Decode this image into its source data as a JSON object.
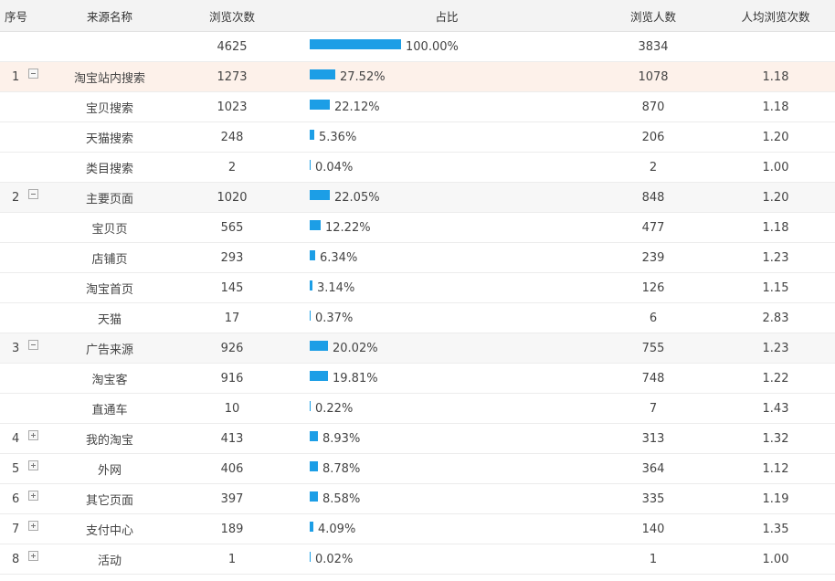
{
  "header": {
    "index": "序号",
    "source": "来源名称",
    "pageviews": "浏览次数",
    "share": "占比",
    "visitors": "浏览人数",
    "avg": "人均浏览次数"
  },
  "total": {
    "pageviews": "4625",
    "share": "100.00%",
    "share_value": 100,
    "visitors": "3834"
  },
  "rows": [
    {
      "index": "1",
      "toggle": "collapse",
      "source": "淘宝站内搜索",
      "pageviews": "1273",
      "share": "27.52%",
      "share_value": 27.52,
      "visitors": "1078",
      "avg": "1.18"
    },
    {
      "source": "宝贝搜索",
      "pageviews": "1023",
      "share": "22.12%",
      "share_value": 22.12,
      "visitors": "870",
      "avg": "1.18"
    },
    {
      "source": "天猫搜索",
      "pageviews": "248",
      "share": "5.36%",
      "share_value": 5.36,
      "visitors": "206",
      "avg": "1.20"
    },
    {
      "source": "类目搜索",
      "pageviews": "2",
      "share": "0.04%",
      "share_value": 0.04,
      "visitors": "2",
      "avg": "1.00"
    },
    {
      "index": "2",
      "toggle": "collapse",
      "source": "主要页面",
      "pageviews": "1020",
      "share": "22.05%",
      "share_value": 22.05,
      "visitors": "848",
      "avg": "1.20"
    },
    {
      "source": "宝贝页",
      "pageviews": "565",
      "share": "12.22%",
      "share_value": 12.22,
      "visitors": "477",
      "avg": "1.18"
    },
    {
      "source": "店铺页",
      "pageviews": "293",
      "share": "6.34%",
      "share_value": 6.34,
      "visitors": "239",
      "avg": "1.23"
    },
    {
      "source": "淘宝首页",
      "pageviews": "145",
      "share": "3.14%",
      "share_value": 3.14,
      "visitors": "126",
      "avg": "1.15"
    },
    {
      "source": "天猫",
      "pageviews": "17",
      "share": "0.37%",
      "share_value": 0.37,
      "visitors": "6",
      "avg": "2.83"
    },
    {
      "index": "3",
      "toggle": "collapse",
      "source": "广告来源",
      "pageviews": "926",
      "share": "20.02%",
      "share_value": 20.02,
      "visitors": "755",
      "avg": "1.23"
    },
    {
      "source": "淘宝客",
      "pageviews": "916",
      "share": "19.81%",
      "share_value": 19.81,
      "visitors": "748",
      "avg": "1.22"
    },
    {
      "source": "直通车",
      "pageviews": "10",
      "share": "0.22%",
      "share_value": 0.22,
      "visitors": "7",
      "avg": "1.43"
    },
    {
      "index": "4",
      "toggle": "expand",
      "source": "我的淘宝",
      "pageviews": "413",
      "share": "8.93%",
      "share_value": 8.93,
      "visitors": "313",
      "avg": "1.32"
    },
    {
      "index": "5",
      "toggle": "expand",
      "source": "外网",
      "pageviews": "406",
      "share": "8.78%",
      "share_value": 8.78,
      "visitors": "364",
      "avg": "1.12"
    },
    {
      "index": "6",
      "toggle": "expand",
      "source": "其它页面",
      "pageviews": "397",
      "share": "8.58%",
      "share_value": 8.58,
      "visitors": "335",
      "avg": "1.19"
    },
    {
      "index": "7",
      "toggle": "expand",
      "source": "支付中心",
      "pageviews": "189",
      "share": "4.09%",
      "share_value": 4.09,
      "visitors": "140",
      "avg": "1.35"
    },
    {
      "index": "8",
      "toggle": "expand",
      "source": "活动",
      "pageviews": "1",
      "share": "0.02%",
      "share_value": 0.02,
      "visitors": "1",
      "avg": "1.00"
    }
  ],
  "colors": {
    "bar": "#1c9ee6",
    "highlight_row": "#fdf1ea",
    "group_row": "#f7f7f7",
    "header_bg": "#f3f3f3"
  }
}
